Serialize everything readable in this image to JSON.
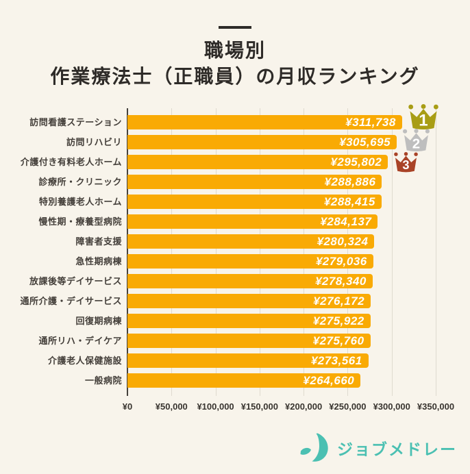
{
  "header": {
    "title_line1": "職場別",
    "title_line2": "作業療法士（正職員）の月収ランキング"
  },
  "chart_data": {
    "type": "bar",
    "orientation": "horizontal",
    "title": "職場別 作業療法士（正職員）の月収ランキング",
    "categories": [
      "訪問看護ステーション",
      "訪問リハビリ",
      "介護付き有料老人ホーム",
      "診療所・クリニック",
      "特別養護老人ホーム",
      "慢性期・療養型病院",
      "障害者支援",
      "急性期病棟",
      "放課後等デイサービス",
      "通所介護・デイサービス",
      "回復期病棟",
      "通所リハ・デイケア",
      "介護老人保健施設",
      "一般病院"
    ],
    "values": [
      311738,
      305695,
      295802,
      288886,
      288415,
      284137,
      280324,
      279036,
      278340,
      276172,
      275922,
      275760,
      273561,
      264660
    ],
    "value_labels": [
      "¥311,738",
      "¥305,695",
      "¥295,802",
      "¥288,886",
      "¥288,415",
      "¥284,137",
      "¥280,324",
      "¥279,036",
      "¥278,340",
      "¥276,172",
      "¥275,922",
      "¥275,760",
      "¥273,561",
      "¥264,660"
    ],
    "x_tick_labels": [
      "¥0",
      "¥50,000",
      "¥100,000",
      "¥150,000",
      "¥200,000",
      "¥250,000",
      "¥300,000",
      "¥350,000"
    ],
    "xlim": [
      0,
      350000
    ],
    "grid": true,
    "legend": false,
    "bar_color": "#F9AA04",
    "ranks": [
      {
        "label": "1",
        "color": "#A89D15"
      },
      {
        "label": "2",
        "color": "#BEBEBE"
      },
      {
        "label": "3",
        "color": "#A94327"
      }
    ]
  },
  "footer": {
    "brand": "ジョブメドレー",
    "brand_color": "#4BC0B2"
  },
  "theme": {
    "background": "#F8F4EB",
    "text_dark": "#2E2B28",
    "gridline": "#DFDACF"
  }
}
